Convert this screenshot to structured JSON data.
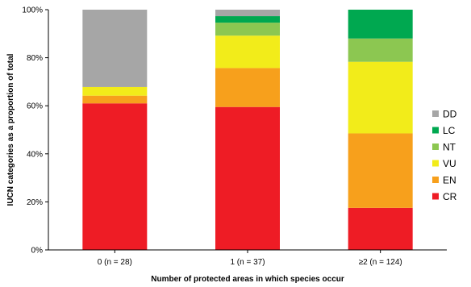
{
  "chart_data": {
    "type": "bar",
    "stacked": true,
    "percent": true,
    "categories": [
      "0 (n = 28)",
      "1 (n = 37)",
      "≥2 (n = 124)"
    ],
    "series": [
      {
        "name": "CR",
        "color": "#ee1c25",
        "values": [
          61,
          59.5,
          17.5
        ]
      },
      {
        "name": "EN",
        "color": "#f7a01c",
        "values": [
          3.2,
          16.2,
          31
        ]
      },
      {
        "name": "VU",
        "color": "#f2ec1a",
        "values": [
          3.6,
          13.5,
          29.8
        ]
      },
      {
        "name": "NT",
        "color": "#8cc751",
        "values": [
          0,
          5.4,
          9.7
        ]
      },
      {
        "name": "LC",
        "color": "#00a850",
        "values": [
          0,
          2.7,
          12
        ]
      },
      {
        "name": "DD",
        "color": "#a6a6a6",
        "values": [
          32.2,
          2.7,
          0
        ]
      }
    ],
    "legend_order": [
      "DD",
      "LC",
      "NT",
      "VU",
      "EN",
      "CR"
    ],
    "legend_position": "right",
    "xlabel": "Number of protected areas in which species occur",
    "ylabel": "IUCN categories as a proportion of total",
    "ylim": [
      0,
      100
    ],
    "yticks": [
      "0%",
      "20%",
      "40%",
      "60%",
      "80%",
      "100%"
    ],
    "grid": false
  }
}
